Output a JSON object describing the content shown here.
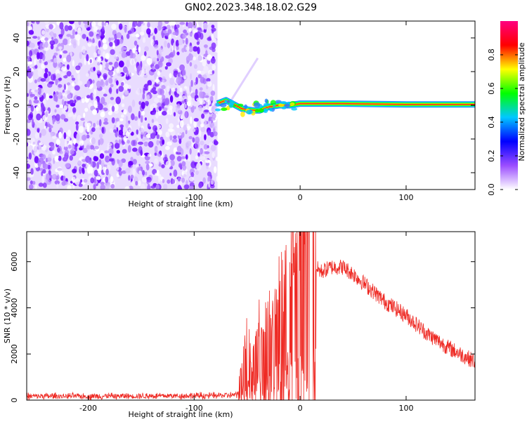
{
  "title": "GN02.2023.348.18.02.G29",
  "chart_data": [
    {
      "type": "heatmap",
      "xlabel": "Height of straight line (km)",
      "ylabel": "Frequency (Hz)",
      "xlim": [
        -258,
        165
      ],
      "ylim": [
        -50,
        50
      ],
      "xticks": [
        -200,
        -100,
        0,
        100
      ],
      "yticks": [
        -40,
        -20,
        0,
        20,
        40
      ],
      "colorbar": {
        "label": "Normalized spectral amplitude",
        "range": [
          0,
          1
        ],
        "ticks": [
          0.0,
          0.2,
          0.4,
          0.6,
          0.8
        ],
        "colormap": [
          "#ffffff",
          "#9b4dff",
          "#0000ff",
          "#00c8ff",
          "#00ff00",
          "#ffff00",
          "#ff0000",
          "#ff0080"
        ]
      },
      "noise_region_x": [
        -258,
        -78
      ],
      "signal_line": {
        "x_start": -78,
        "x_end": 165,
        "freq_hz": [
          1,
          3,
          -2,
          -3,
          -3,
          -1,
          0,
          0,
          1,
          1,
          0.5,
          0.5
        ],
        "x_at_freq": [
          -78,
          -70,
          -55,
          -45,
          -38,
          -30,
          -20,
          -10,
          0,
          40,
          100,
          165
        ]
      },
      "grid": false
    },
    {
      "type": "line",
      "xlabel": "Height of straight line (km)",
      "ylabel": "SNR (10 * v/v)",
      "xlim": [
        -258,
        165
      ],
      "ylim": [
        0,
        7300
      ],
      "xticks": [
        -200,
        -100,
        0,
        100
      ],
      "yticks": [
        0,
        2000,
        4000,
        6000
      ],
      "series_color": "#ee2a24",
      "envelope": {
        "x": [
          -258,
          -200,
          -150,
          -100,
          -80,
          -60,
          -57,
          -50,
          -45,
          -40,
          -35,
          -30,
          -25,
          -20,
          -15,
          -10,
          -5,
          0,
          5,
          10,
          20,
          30,
          40,
          50,
          60,
          80,
          100,
          120,
          140,
          165
        ],
        "y": [
          250,
          250,
          260,
          270,
          280,
          300,
          500,
          1800,
          900,
          2200,
          1400,
          2500,
          1800,
          3000,
          2800,
          3500,
          3700,
          4200,
          5000,
          5800,
          5500,
          5700,
          5700,
          5400,
          5000,
          4200,
          3600,
          2800,
          2200,
          1600
        ]
      },
      "grid": false
    }
  ]
}
